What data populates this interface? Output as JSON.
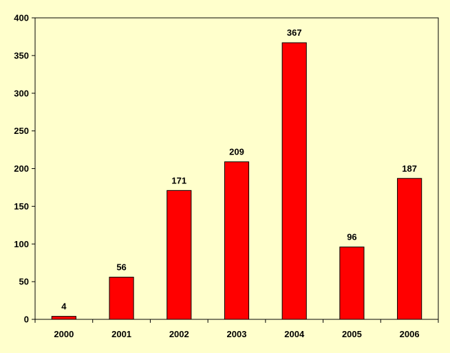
{
  "chart_data": {
    "type": "bar",
    "title": "",
    "xlabel": "",
    "ylabel": "",
    "categories": [
      "2000",
      "2001",
      "2002",
      "2003",
      "2004",
      "2005",
      "2006"
    ],
    "values": [
      4,
      56,
      171,
      209,
      367,
      96,
      187
    ],
    "ylim": [
      0,
      400
    ],
    "yticks": [
      "0",
      "50",
      "100",
      "150",
      "200",
      "250",
      "300",
      "350",
      "400"
    ],
    "grid": false,
    "legend": "none",
    "data_labels": true
  },
  "colors": {
    "background": "#ffffcc",
    "plot_area": "#ffffcc",
    "bar_fill": "#ff0000",
    "bar_stroke": "#000000",
    "axis": "#000000"
  }
}
